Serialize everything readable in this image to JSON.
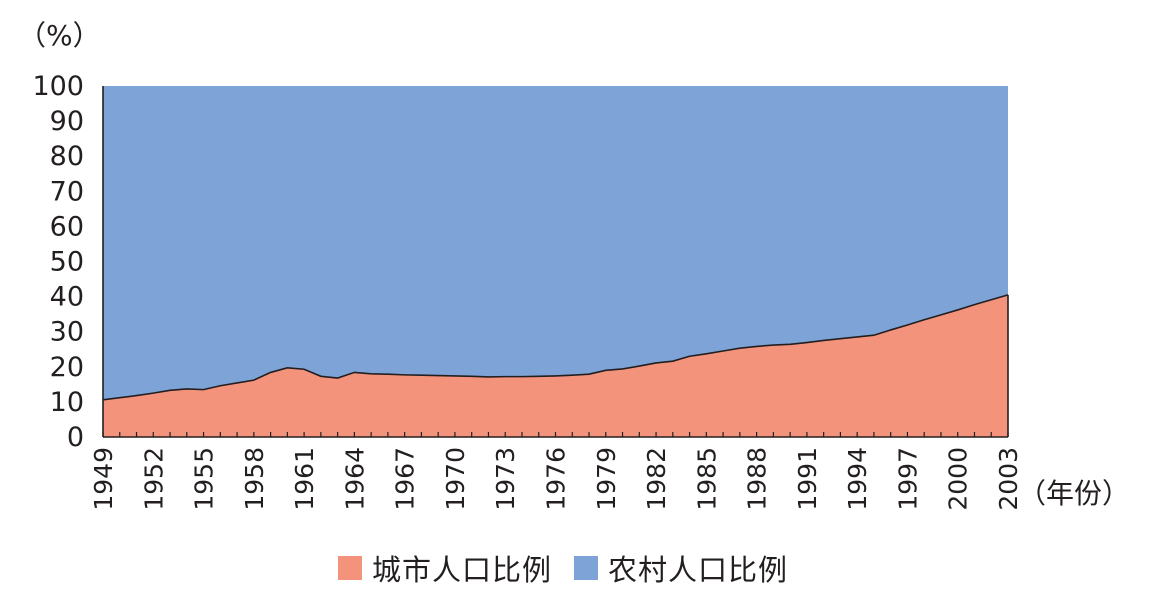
{
  "chart_data": {
    "type": "area",
    "stacked": true,
    "percent_stacked": true,
    "y_unit_label": "（%）",
    "x_unit_label": "（年份）",
    "ylim": [
      0,
      100
    ],
    "yticks": [
      "0",
      "10",
      "20",
      "30",
      "40",
      "50",
      "60",
      "70",
      "80",
      "90",
      "100"
    ],
    "xtick_labels": [
      "1949",
      "1952",
      "1955",
      "1958",
      "1961",
      "1964",
      "1967",
      "1970",
      "1973",
      "1976",
      "1979",
      "1982",
      "1985",
      "1988",
      "1991",
      "1994",
      "1997",
      "2000",
      "2003"
    ],
    "x": [
      1949,
      1950,
      1951,
      1952,
      1953,
      1954,
      1955,
      1956,
      1957,
      1958,
      1959,
      1960,
      1961,
      1962,
      1963,
      1964,
      1965,
      1966,
      1967,
      1968,
      1969,
      1970,
      1971,
      1972,
      1973,
      1974,
      1975,
      1976,
      1977,
      1978,
      1979,
      1980,
      1981,
      1982,
      1983,
      1984,
      1985,
      1986,
      1987,
      1988,
      1989,
      1990,
      1991,
      1992,
      1993,
      1994,
      1995,
      1996,
      1997,
      1998,
      1999,
      2000,
      2001,
      2002,
      2003
    ],
    "series": [
      {
        "name": "城市人口比例",
        "color": "#f4937c",
        "values": [
          10.6,
          11.2,
          11.8,
          12.5,
          13.3,
          13.7,
          13.5,
          14.6,
          15.4,
          16.2,
          18.4,
          19.7,
          19.3,
          17.3,
          16.8,
          18.4,
          18.0,
          17.9,
          17.7,
          17.6,
          17.5,
          17.4,
          17.3,
          17.1,
          17.2,
          17.2,
          17.3,
          17.4,
          17.6,
          17.9,
          19.0,
          19.4,
          20.2,
          21.1,
          21.6,
          23.0,
          23.7,
          24.5,
          25.3,
          25.8,
          26.2,
          26.4,
          26.9,
          27.5,
          28.0,
          28.5,
          29.0,
          30.5,
          31.9,
          33.4,
          34.8,
          36.2,
          37.7,
          39.1,
          40.5
        ]
      },
      {
        "name": "农村人口比例",
        "color": "#7ea3d6",
        "values": [
          89.4,
          88.8,
          88.2,
          87.5,
          86.7,
          86.3,
          86.5,
          85.4,
          84.6,
          83.8,
          81.6,
          80.3,
          80.7,
          82.7,
          83.2,
          81.6,
          82.0,
          82.1,
          82.3,
          82.4,
          82.5,
          82.6,
          82.7,
          82.9,
          82.8,
          82.8,
          82.7,
          82.6,
          82.4,
          82.1,
          81.0,
          80.6,
          79.8,
          78.9,
          78.4,
          77.0,
          76.3,
          75.5,
          74.7,
          74.2,
          73.8,
          73.6,
          73.1,
          72.5,
          72.0,
          71.5,
          71.0,
          69.5,
          68.1,
          66.6,
          65.2,
          63.8,
          62.3,
          60.9,
          59.5
        ]
      }
    ],
    "grid": false,
    "legend_position": "bottom-center"
  }
}
